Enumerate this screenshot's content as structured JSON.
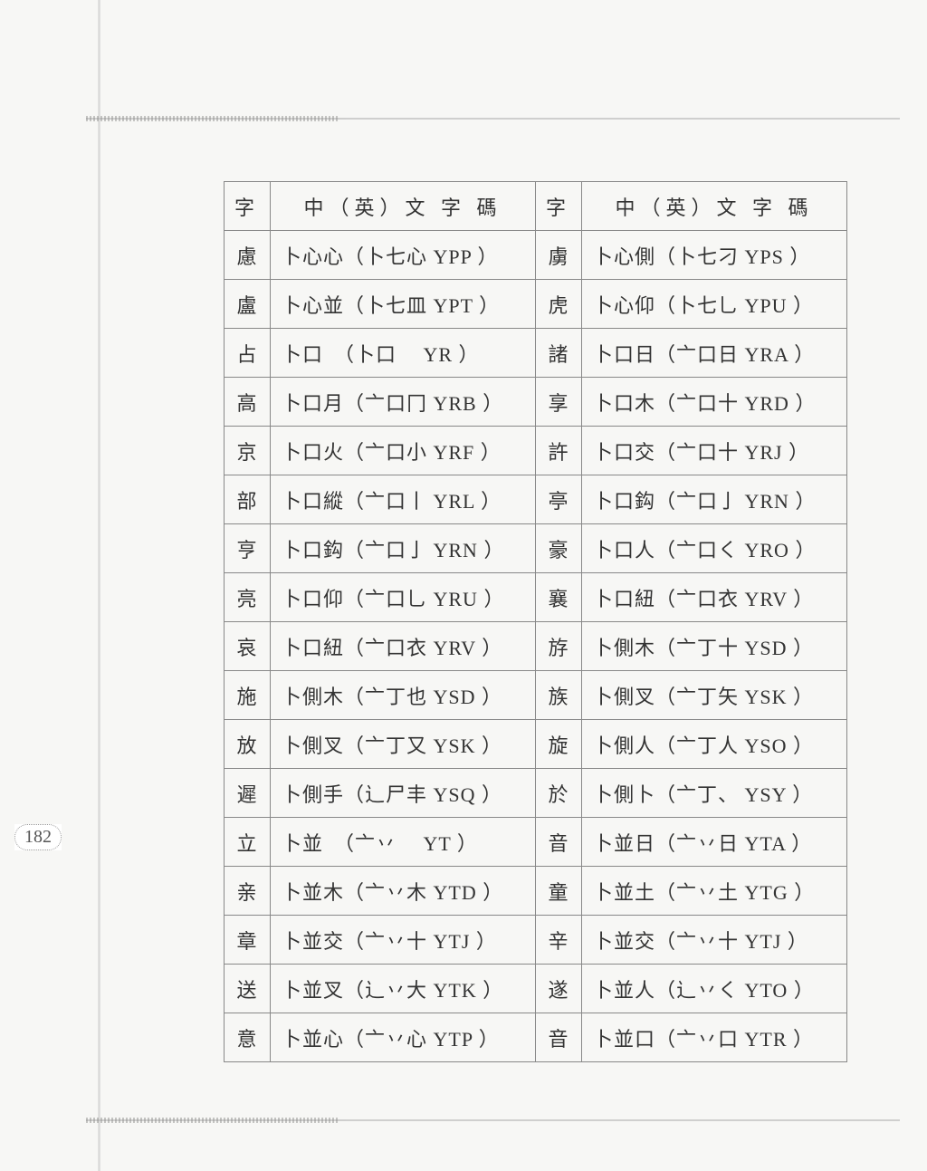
{
  "page_number": "182",
  "headers": {
    "zi": "字",
    "code": "中（英）文 字 碼"
  },
  "rows": [
    {
      "z1": "慮",
      "c1": "卜心心（卜七心 YPP ）",
      "z2": "虜",
      "c2": "卜心側（卜七刁 YPS ）"
    },
    {
      "z1": "盧",
      "c1": "卜心並（卜七皿 YPT ）",
      "z2": "虎",
      "c2": "卜心仰（卜七乚 YPU ）"
    },
    {
      "z1": "占",
      "c1": "卜口　（卜口　 YR ）",
      "z2": "諸",
      "c2": "卜口日（亠口日 YRA ）"
    },
    {
      "z1": "高",
      "c1": "卜口月（亠口冂 YRB ）",
      "z2": "享",
      "c2": "卜口木（亠口十 YRD ）"
    },
    {
      "z1": "京",
      "c1": "卜口火（亠口小 YRF ）",
      "z2": "許",
      "c2": "卜口交（亠口十 YRJ ）"
    },
    {
      "z1": "部",
      "c1": "卜口縱（亠口丨 YRL ）",
      "z2": "亭",
      "c2": "卜口鈎（亠口亅 YRN ）"
    },
    {
      "z1": "亨",
      "c1": "卜口鈎（亠口亅 YRN ）",
      "z2": "豪",
      "c2": "卜口人（亠口く YRO ）"
    },
    {
      "z1": "亮",
      "c1": "卜口仰（亠口乚 YRU ）",
      "z2": "襄",
      "c2": "卜口紐（亠口衣 YRV ）"
    },
    {
      "z1": "哀",
      "c1": "卜口紐（亠口衣 YRV ）",
      "z2": "斿",
      "c2": "卜側木（亠丁十 YSD ）"
    },
    {
      "z1": "施",
      "c1": "卜側木（亠丁也 YSD ）",
      "z2": "族",
      "c2": "卜側叉（亠丁矢 YSK ）"
    },
    {
      "z1": "放",
      "c1": "卜側叉（亠丁又 YSK ）",
      "z2": "旋",
      "c2": "卜側人（亠丁人 YSO ）"
    },
    {
      "z1": "遲",
      "c1": "卜側手（辶尸丰 YSQ ）",
      "z2": "於",
      "c2": "卜側卜（亠丁、 YSY ）"
    },
    {
      "z1": "立",
      "c1": "卜並　（亠丷　 YT ）",
      "z2": "音",
      "c2": "卜並日（亠丷日 YTA ）"
    },
    {
      "z1": "亲",
      "c1": "卜並木（亠丷木 YTD ）",
      "z2": "童",
      "c2": "卜並土（亠丷土 YTG ）"
    },
    {
      "z1": "章",
      "c1": "卜並交（亠丷十 YTJ ）",
      "z2": "辛",
      "c2": "卜並交（亠丷十 YTJ ）"
    },
    {
      "z1": "送",
      "c1": "卜並叉（辶丷大 YTK ）",
      "z2": "遂",
      "c2": "卜並人（辶丷く YTO ）"
    },
    {
      "z1": "意",
      "c1": "卜並心（亠丷心 YTP ）",
      "z2": "音",
      "c2": "卜並口（亠丷口 YTR ）"
    }
  ]
}
